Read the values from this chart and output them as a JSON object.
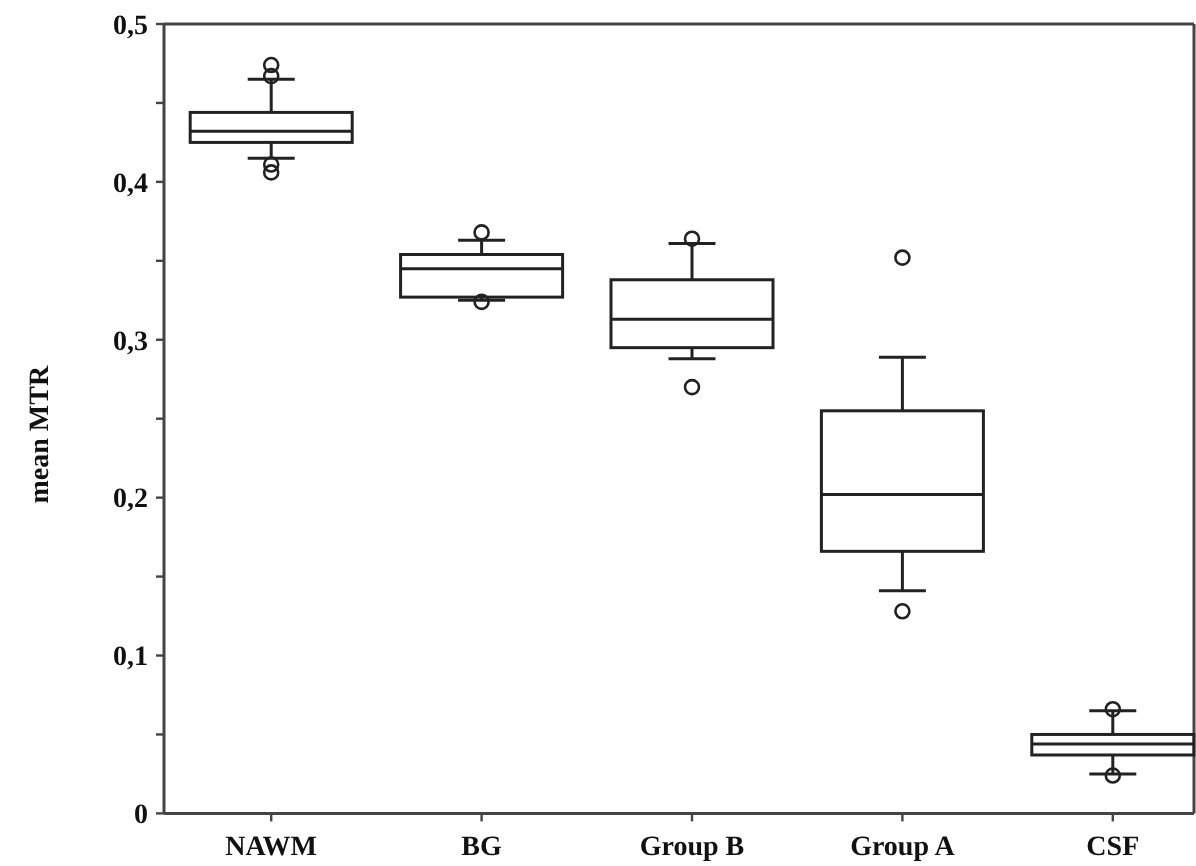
{
  "chart_data": {
    "type": "box",
    "ylabel": "mean MTR",
    "categories": [
      "NAWM",
      "BG",
      "Group B",
      "Group A",
      "CSF"
    ],
    "boxes": [
      {
        "low": 0.415,
        "q1": 0.425,
        "median": 0.432,
        "q3": 0.444,
        "high": 0.465,
        "outliers": [
          0.474,
          0.467,
          0.411,
          0.406
        ]
      },
      {
        "low": 0.325,
        "q1": 0.327,
        "median": 0.345,
        "q3": 0.354,
        "high": 0.363,
        "outliers": [
          0.368,
          0.324
        ]
      },
      {
        "low": 0.288,
        "q1": 0.295,
        "median": 0.313,
        "q3": 0.338,
        "high": 0.361,
        "outliers": [
          0.364,
          0.27
        ]
      },
      {
        "low": 0.141,
        "q1": 0.166,
        "median": 0.202,
        "q3": 0.255,
        "high": 0.289,
        "outliers": [
          0.352,
          0.128
        ]
      },
      {
        "low": 0.025,
        "q1": 0.037,
        "median": 0.044,
        "q3": 0.05,
        "high": 0.065,
        "outliers": [
          0.066,
          0.024
        ]
      }
    ],
    "ylim": [
      0,
      0.5
    ],
    "yticks": [
      0,
      {
        "value": 0.05,
        "label": null
      },
      {
        "value": 0.1,
        "label": "0,1"
      },
      {
        "value": 0.15,
        "label": null
      },
      {
        "value": 0.2,
        "label": "0,2"
      },
      {
        "value": 0.25,
        "label": null
      },
      {
        "value": 0.3,
        "label": "0,3"
      },
      {
        "value": 0.35,
        "label": null
      },
      {
        "value": 0.4,
        "label": "0,4"
      },
      {
        "value": 0.45,
        "label": null
      },
      {
        "value": 0.5,
        "label": "0,5"
      }
    ]
  }
}
